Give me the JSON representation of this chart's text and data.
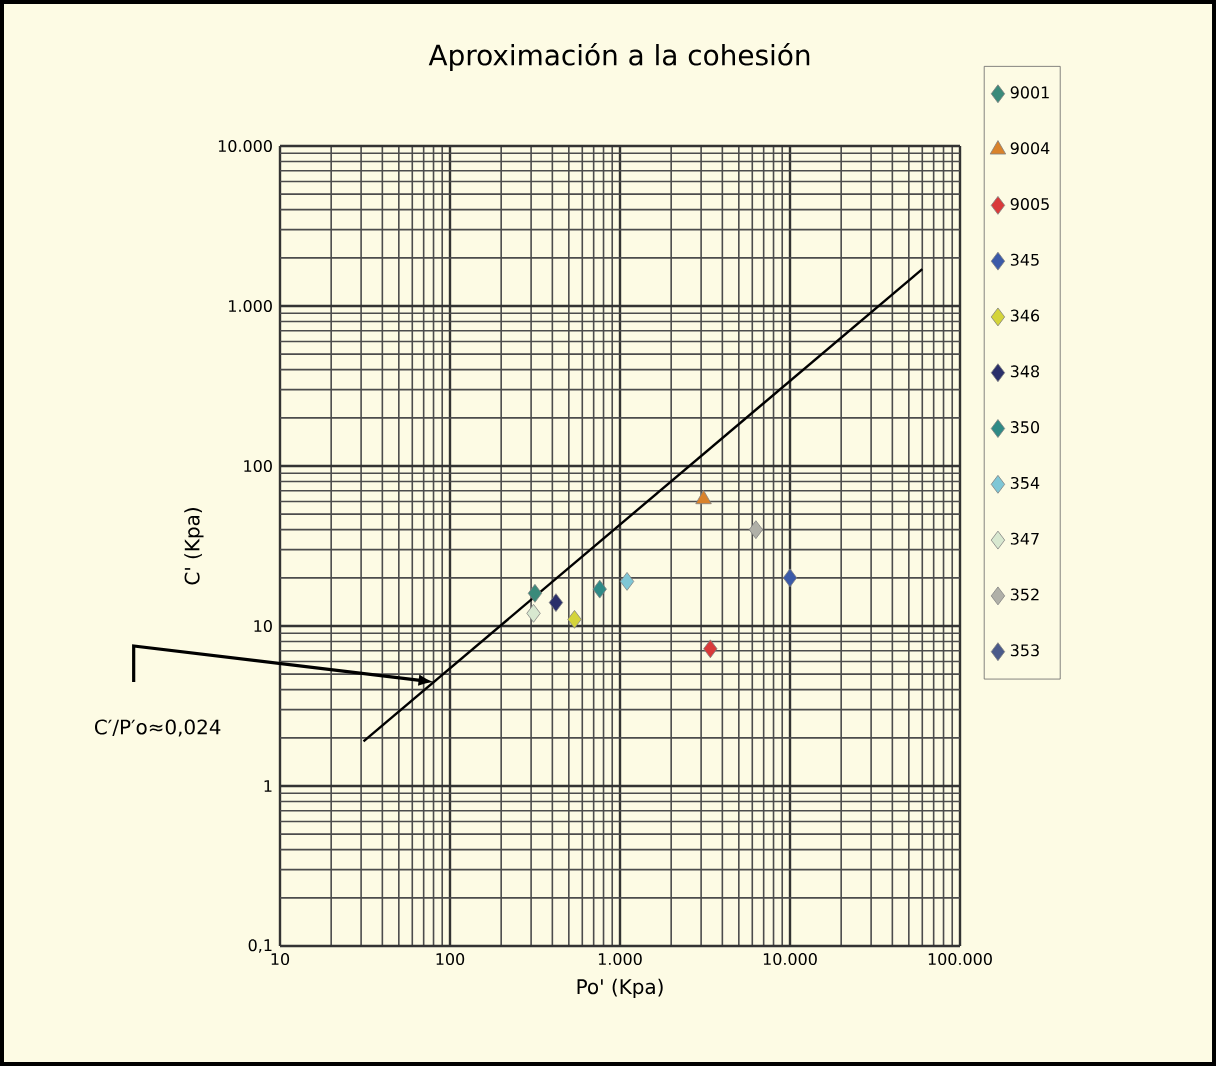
{
  "chart_data": {
    "type": "scatter",
    "title": "Aproximación a la cohesión",
    "xlabel": "Po' (Kpa)",
    "ylabel": "C' (Kpa)",
    "log": "xy",
    "grid": true,
    "legend": "right",
    "marker": "diamond",
    "xlim": [
      10,
      100000
    ],
    "ylim": [
      0.1,
      10000
    ],
    "xticks": [
      10,
      100,
      {
        "value": 1000,
        "label": "1.000"
      },
      {
        "value": 10000,
        "label": "10.000"
      },
      {
        "value": 100000,
        "label": "100.000"
      }
    ],
    "yticks": [
      {
        "value": 0.1,
        "label": "0,1"
      },
      1,
      10,
      100,
      {
        "value": 1000,
        "label": "1.000"
      },
      {
        "value": 10000,
        "label": "10.000"
      }
    ],
    "annotations": [
      "C′/P′o≈0,024"
    ],
    "series": [
      {
        "name": "9001",
        "color": "#3a8a7a",
        "x": [
          316
        ],
        "values": [
          16
        ]
      },
      {
        "name": "9004",
        "color": "#d9822b",
        "marker": "triangle",
        "x": [
          3100
        ],
        "values": [
          62
        ]
      },
      {
        "name": "9005",
        "color": "#d93a3a",
        "x": [
          3400
        ],
        "values": [
          7.2
        ]
      },
      {
        "name": "345",
        "color": "#3b5aa8",
        "x": [
          10000
        ],
        "values": [
          20
        ]
      },
      {
        "name": "346",
        "color": "#d4d43a",
        "x": [
          540
        ],
        "values": [
          11
        ]
      },
      {
        "name": "348",
        "color": "#2a2f6a",
        "x": [
          420
        ],
        "values": [
          14
        ]
      },
      {
        "name": "350",
        "color": "#2f8a86",
        "x": [
          760
        ],
        "values": [
          17
        ]
      },
      {
        "name": "354",
        "color": "#7fc7d6",
        "x": [
          1100
        ],
        "values": [
          19
        ]
      },
      {
        "name": "347",
        "color": "#d8e8d0",
        "x": [
          310
        ],
        "values": [
          12
        ]
      },
      {
        "name": "352",
        "color": "#b0b0a8",
        "x": [
          6300
        ],
        "values": [
          40
        ]
      },
      {
        "name": "353",
        "color": "#4a5a8a",
        "x": [
          null
        ],
        "values": [
          null
        ]
      },
      {
        "type": "line",
        "color": "#000000",
        "marker": "none",
        "x": [
          31,
          60000
        ],
        "values": [
          1.9,
          1700
        ]
      }
    ]
  }
}
